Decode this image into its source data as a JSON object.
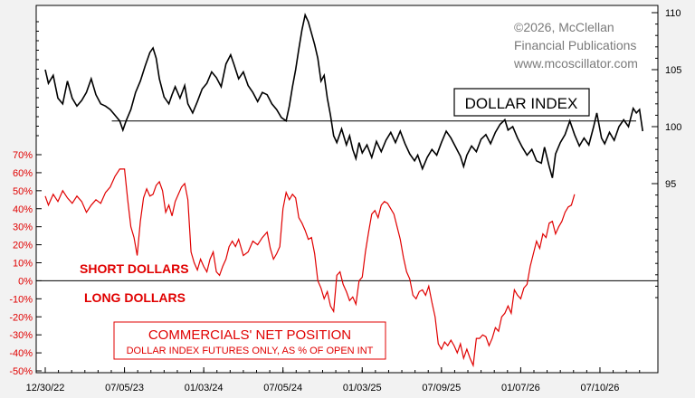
{
  "chart_data": {
    "type": "line",
    "credit": [
      "©2026, McClellan",
      "Financial Publications",
      "www.mcoscillator.com"
    ],
    "series_title": "DOLLAR INDEX",
    "legend_title": "COMMERCIALS' NET POSITION",
    "legend_subtitle": "DOLLAR INDEX FUTURES ONLY, AS % OF OPEN INT",
    "annotations": {
      "short": "SHORT DOLLARS",
      "long": "LONG DOLLARS"
    },
    "x_ticks": [
      "12/30/22",
      "07/05/23",
      "01/03/24",
      "07/05/24",
      "01/03/25",
      "07/09/25",
      "01/07/26",
      "07/10/26"
    ],
    "x_tick_pos": [
      0,
      0.5,
      1.0,
      1.5,
      2.0,
      2.5,
      3.0,
      3.5
    ],
    "xlim": [
      0,
      3.78
    ],
    "right_axis": {
      "ticks": [
        "110",
        "105",
        "100",
        "95"
      ],
      "values": [
        110,
        105,
        100,
        95
      ],
      "ylim": [
        85,
        110
      ]
    },
    "left_axis": {
      "ticks": [
        "70%",
        "60%",
        "50%",
        "40%",
        "30%",
        "20%",
        "10%",
        "0%",
        "-10%",
        "-20%",
        "-30%",
        "-40%",
        "-50%"
      ],
      "values": [
        70,
        60,
        50,
        40,
        30,
        20,
        10,
        0,
        -10,
        -20,
        -30,
        -40,
        -50
      ],
      "ylim": [
        -50,
        70
      ]
    },
    "reference_line_dollar": 100.5,
    "zero_line_pct": 0,
    "colors": {
      "dollar": "#000000",
      "commercials": "#e00000",
      "background": "#ffffff"
    },
    "series": [
      {
        "name": "DOLLAR INDEX",
        "axis": "right",
        "points": [
          [
            0.0,
            105.0
          ],
          [
            0.02,
            103.8
          ],
          [
            0.05,
            104.5
          ],
          [
            0.08,
            102.5
          ],
          [
            0.11,
            102.0
          ],
          [
            0.14,
            104.0
          ],
          [
            0.17,
            102.5
          ],
          [
            0.2,
            101.8
          ],
          [
            0.23,
            102.3
          ],
          [
            0.26,
            103.0
          ],
          [
            0.29,
            104.2
          ],
          [
            0.32,
            102.8
          ],
          [
            0.35,
            102.0
          ],
          [
            0.38,
            101.8
          ],
          [
            0.41,
            101.5
          ],
          [
            0.44,
            101.0
          ],
          [
            0.47,
            100.5
          ],
          [
            0.49,
            99.7
          ],
          [
            0.51,
            100.5
          ],
          [
            0.54,
            101.5
          ],
          [
            0.57,
            103.0
          ],
          [
            0.6,
            104.0
          ],
          [
            0.63,
            105.3
          ],
          [
            0.66,
            106.5
          ],
          [
            0.68,
            106.9
          ],
          [
            0.7,
            106.0
          ],
          [
            0.72,
            104.2
          ],
          [
            0.75,
            102.6
          ],
          [
            0.78,
            102.0
          ],
          [
            0.8,
            102.8
          ],
          [
            0.82,
            103.5
          ],
          [
            0.85,
            102.5
          ],
          [
            0.88,
            103.6
          ],
          [
            0.9,
            102.0
          ],
          [
            0.93,
            101.2
          ],
          [
            0.96,
            102.2
          ],
          [
            0.99,
            103.3
          ],
          [
            1.02,
            103.8
          ],
          [
            1.05,
            104.8
          ],
          [
            1.08,
            104.3
          ],
          [
            1.11,
            103.5
          ],
          [
            1.14,
            105.5
          ],
          [
            1.17,
            106.3
          ],
          [
            1.19,
            105.5
          ],
          [
            1.22,
            104.2
          ],
          [
            1.25,
            104.8
          ],
          [
            1.28,
            103.6
          ],
          [
            1.31,
            103.0
          ],
          [
            1.34,
            102.2
          ],
          [
            1.37,
            103.0
          ],
          [
            1.4,
            102.8
          ],
          [
            1.43,
            102.0
          ],
          [
            1.46,
            101.5
          ],
          [
            1.49,
            100.8
          ],
          [
            1.52,
            100.5
          ],
          [
            1.54,
            101.8
          ],
          [
            1.56,
            103.5
          ],
          [
            1.58,
            105.0
          ],
          [
            1.6,
            106.8
          ],
          [
            1.62,
            108.5
          ],
          [
            1.64,
            109.8
          ],
          [
            1.66,
            109.2
          ],
          [
            1.68,
            108.2
          ],
          [
            1.7,
            107.2
          ],
          [
            1.72,
            106.0
          ],
          [
            1.74,
            104.0
          ],
          [
            1.76,
            104.5
          ],
          [
            1.78,
            102.5
          ],
          [
            1.8,
            101.0
          ],
          [
            1.82,
            99.2
          ],
          [
            1.84,
            98.6
          ],
          [
            1.87,
            99.8
          ],
          [
            1.9,
            98.4
          ],
          [
            1.92,
            99.2
          ],
          [
            1.94,
            98.0
          ],
          [
            1.96,
            97.2
          ],
          [
            1.98,
            98.6
          ],
          [
            2.0,
            97.7
          ],
          [
            2.03,
            98.4
          ],
          [
            2.06,
            97.3
          ],
          [
            2.09,
            98.7
          ],
          [
            2.12,
            97.8
          ],
          [
            2.15,
            98.8
          ],
          [
            2.18,
            99.5
          ],
          [
            2.21,
            98.6
          ],
          [
            2.24,
            99.6
          ],
          [
            2.27,
            98.5
          ],
          [
            2.3,
            97.6
          ],
          [
            2.33,
            97.0
          ],
          [
            2.35,
            97.5
          ],
          [
            2.38,
            96.3
          ],
          [
            2.41,
            97.3
          ],
          [
            2.44,
            98.0
          ],
          [
            2.47,
            97.5
          ],
          [
            2.5,
            98.6
          ],
          [
            2.53,
            99.6
          ],
          [
            2.56,
            99.0
          ],
          [
            2.59,
            98.2
          ],
          [
            2.62,
            97.4
          ],
          [
            2.64,
            96.5
          ],
          [
            2.66,
            97.5
          ],
          [
            2.69,
            98.3
          ],
          [
            2.72,
            97.8
          ],
          [
            2.75,
            98.9
          ],
          [
            2.78,
            99.3
          ],
          [
            2.81,
            98.5
          ],
          [
            2.84,
            99.5
          ],
          [
            2.87,
            100.2
          ],
          [
            2.9,
            100.6
          ],
          [
            2.92,
            99.7
          ],
          [
            2.95,
            100.0
          ],
          [
            2.98,
            99.0
          ],
          [
            3.01,
            98.2
          ],
          [
            3.04,
            97.5
          ],
          [
            3.07,
            98.0
          ],
          [
            3.1,
            97.0
          ],
          [
            3.13,
            96.8
          ],
          [
            3.15,
            98.2
          ],
          [
            3.18,
            96.5
          ],
          [
            3.2,
            95.5
          ],
          [
            3.22,
            97.6
          ],
          [
            3.25,
            98.6
          ],
          [
            3.28,
            99.3
          ],
          [
            3.31,
            100.5
          ],
          [
            3.34,
            99.3
          ],
          [
            3.37,
            98.3
          ],
          [
            3.4,
            99.0
          ],
          [
            3.43,
            98.4
          ],
          [
            3.46,
            100.0
          ],
          [
            3.48,
            101.2
          ],
          [
            3.51,
            99.0
          ],
          [
            3.53,
            98.5
          ],
          [
            3.56,
            99.5
          ],
          [
            3.59,
            98.8
          ],
          [
            3.62,
            100.0
          ],
          [
            3.65,
            100.6
          ],
          [
            3.68,
            100.0
          ],
          [
            3.71,
            101.6
          ],
          [
            3.73,
            101.2
          ],
          [
            3.75,
            101.5
          ],
          [
            3.77,
            99.6
          ]
        ]
      },
      {
        "name": "COMMERCIALS' NET POSITION",
        "axis": "left",
        "points": [
          [
            0.0,
            47
          ],
          [
            0.02,
            42
          ],
          [
            0.05,
            48
          ],
          [
            0.08,
            44
          ],
          [
            0.11,
            50
          ],
          [
            0.14,
            46
          ],
          [
            0.17,
            43
          ],
          [
            0.2,
            47
          ],
          [
            0.23,
            44
          ],
          [
            0.26,
            38
          ],
          [
            0.29,
            42
          ],
          [
            0.32,
            45
          ],
          [
            0.35,
            43
          ],
          [
            0.38,
            49
          ],
          [
            0.41,
            52
          ],
          [
            0.44,
            58
          ],
          [
            0.47,
            62
          ],
          [
            0.5,
            62
          ],
          [
            0.52,
            45
          ],
          [
            0.54,
            30
          ],
          [
            0.56,
            24
          ],
          [
            0.58,
            14
          ],
          [
            0.6,
            33
          ],
          [
            0.62,
            46
          ],
          [
            0.64,
            51
          ],
          [
            0.66,
            47
          ],
          [
            0.68,
            48
          ],
          [
            0.7,
            53
          ],
          [
            0.72,
            55
          ],
          [
            0.74,
            50
          ],
          [
            0.76,
            38
          ],
          [
            0.78,
            42
          ],
          [
            0.8,
            36
          ],
          [
            0.82,
            44
          ],
          [
            0.84,
            48
          ],
          [
            0.86,
            52
          ],
          [
            0.88,
            54
          ],
          [
            0.9,
            45
          ],
          [
            0.92,
            16
          ],
          [
            0.94,
            10
          ],
          [
            0.96,
            6
          ],
          [
            0.98,
            12
          ],
          [
            1.0,
            8
          ],
          [
            1.02,
            5
          ],
          [
            1.04,
            12
          ],
          [
            1.06,
            16
          ],
          [
            1.08,
            5
          ],
          [
            1.1,
            3
          ],
          [
            1.12,
            8
          ],
          [
            1.14,
            12
          ],
          [
            1.16,
            19
          ],
          [
            1.18,
            22
          ],
          [
            1.2,
            19
          ],
          [
            1.22,
            23
          ],
          [
            1.25,
            14
          ],
          [
            1.28,
            16
          ],
          [
            1.31,
            22
          ],
          [
            1.34,
            20
          ],
          [
            1.37,
            24
          ],
          [
            1.4,
            27
          ],
          [
            1.42,
            18
          ],
          [
            1.44,
            12
          ],
          [
            1.46,
            15
          ],
          [
            1.48,
            19
          ],
          [
            1.5,
            40
          ],
          [
            1.52,
            49
          ],
          [
            1.54,
            45
          ],
          [
            1.56,
            48
          ],
          [
            1.58,
            46
          ],
          [
            1.6,
            35
          ],
          [
            1.62,
            32
          ],
          [
            1.64,
            28
          ],
          [
            1.66,
            23
          ],
          [
            1.68,
            24
          ],
          [
            1.7,
            15
          ],
          [
            1.72,
            0
          ],
          [
            1.74,
            -4
          ],
          [
            1.76,
            -10
          ],
          [
            1.78,
            -6
          ],
          [
            1.8,
            -14
          ],
          [
            1.82,
            -17
          ],
          [
            1.84,
            3
          ],
          [
            1.86,
            5
          ],
          [
            1.88,
            -2
          ],
          [
            1.9,
            -6
          ],
          [
            1.92,
            -11
          ],
          [
            1.94,
            -9
          ],
          [
            1.96,
            -13
          ],
          [
            1.98,
            0
          ],
          [
            2.0,
            2
          ],
          [
            2.02,
            16
          ],
          [
            2.04,
            27
          ],
          [
            2.06,
            37
          ],
          [
            2.08,
            39
          ],
          [
            2.1,
            35
          ],
          [
            2.12,
            42
          ],
          [
            2.14,
            44
          ],
          [
            2.16,
            43
          ],
          [
            2.18,
            40
          ],
          [
            2.2,
            37
          ],
          [
            2.22,
            30
          ],
          [
            2.24,
            23
          ],
          [
            2.26,
            13
          ],
          [
            2.28,
            5
          ],
          [
            2.3,
            1
          ],
          [
            2.32,
            -8
          ],
          [
            2.34,
            -10
          ],
          [
            2.36,
            -6
          ],
          [
            2.38,
            -5
          ],
          [
            2.4,
            -8
          ],
          [
            2.42,
            -3
          ],
          [
            2.44,
            -12
          ],
          [
            2.46,
            -20
          ],
          [
            2.48,
            -35
          ],
          [
            2.5,
            -38
          ],
          [
            2.52,
            -34
          ],
          [
            2.54,
            -36
          ],
          [
            2.56,
            -33
          ],
          [
            2.58,
            -36
          ],
          [
            2.6,
            -40
          ],
          [
            2.62,
            -35
          ],
          [
            2.64,
            -43
          ],
          [
            2.66,
            -38
          ],
          [
            2.68,
            -43
          ],
          [
            2.7,
            -47
          ],
          [
            2.72,
            -32
          ],
          [
            2.74,
            -32
          ],
          [
            2.76,
            -30
          ],
          [
            2.78,
            -31
          ],
          [
            2.8,
            -36
          ],
          [
            2.82,
            -32
          ],
          [
            2.84,
            -26
          ],
          [
            2.86,
            -28
          ],
          [
            2.88,
            -20
          ],
          [
            2.9,
            -18
          ],
          [
            2.92,
            -14
          ],
          [
            2.94,
            -18
          ],
          [
            2.96,
            -5
          ],
          [
            2.98,
            -8
          ],
          [
            3.0,
            -10
          ],
          [
            3.02,
            -4
          ],
          [
            3.04,
            -2
          ],
          [
            3.06,
            8
          ],
          [
            3.08,
            15
          ],
          [
            3.1,
            22
          ],
          [
            3.12,
            18
          ],
          [
            3.14,
            26
          ],
          [
            3.16,
            24
          ],
          [
            3.18,
            32
          ],
          [
            3.2,
            33
          ],
          [
            3.22,
            26
          ],
          [
            3.24,
            30
          ],
          [
            3.26,
            33
          ],
          [
            3.28,
            38
          ],
          [
            3.3,
            41
          ],
          [
            3.32,
            42
          ],
          [
            3.34,
            48
          ]
        ]
      }
    ]
  }
}
